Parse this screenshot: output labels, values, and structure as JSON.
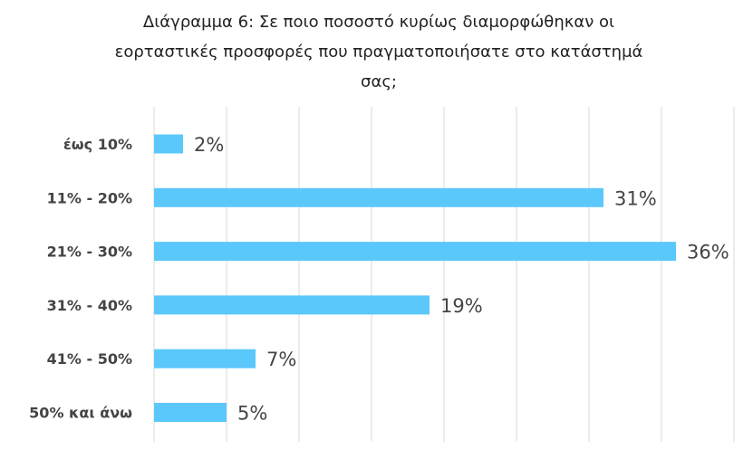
{
  "chart_data": {
    "type": "bar",
    "orientation": "horizontal",
    "title_lines": [
      "Διάγραμμα 6: Σε ποιο ποσοστό κυρίως διαμορφώθηκαν οι",
      "εορταστικές προσφορές που πραγματοποιήσατε στο κατάστημά",
      "σας;"
    ],
    "xlabel": "",
    "ylabel": "",
    "categories": [
      "έως 10%",
      "11% - 20%",
      "21% - 30%",
      "31% - 40%",
      "41% - 50%",
      "50% και άνω"
    ],
    "values": [
      2,
      31,
      36,
      19,
      7,
      5
    ],
    "value_labels": [
      "2%",
      "31%",
      "36%",
      "19%",
      "7%",
      "5%"
    ],
    "xlim": [
      0,
      40
    ],
    "grid": "vertical",
    "legend": "none",
    "bar_color": "#5BC8FB",
    "gridline_color": "#D9D9D9"
  }
}
